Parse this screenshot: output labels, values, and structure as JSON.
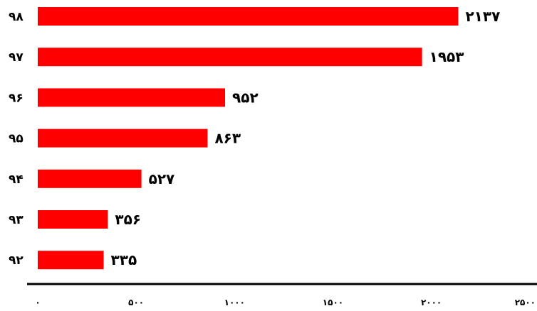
{
  "chart_data": {
    "type": "bar",
    "orientation": "horizontal",
    "categories": [
      "۹۸",
      "۹۷",
      "۹۶",
      "۹۵",
      "۹۴",
      "۹۳",
      "۹۲"
    ],
    "values": [
      2137,
      1953,
      952,
      863,
      527,
      356,
      335
    ],
    "value_labels": [
      "۲۱۳۷",
      "۱۹۵۳",
      "۹۵۲",
      "۸۶۳",
      "۵۲۷",
      "۳۵۶",
      "۳۳۵"
    ],
    "x_ticks": [
      0,
      500,
      1000,
      1500,
      2000,
      2500
    ],
    "x_tick_labels": [
      "۰",
      "۵۰۰",
      "۱۰۰۰",
      "۱۵۰۰",
      "۲۰۰۰",
      "۲۵۰۰"
    ],
    "xlim": [
      0,
      2500
    ],
    "grid": false,
    "bar_color": "#ff0000",
    "axis_color": "#000000",
    "title": "",
    "xlabel": "",
    "ylabel": ""
  }
}
